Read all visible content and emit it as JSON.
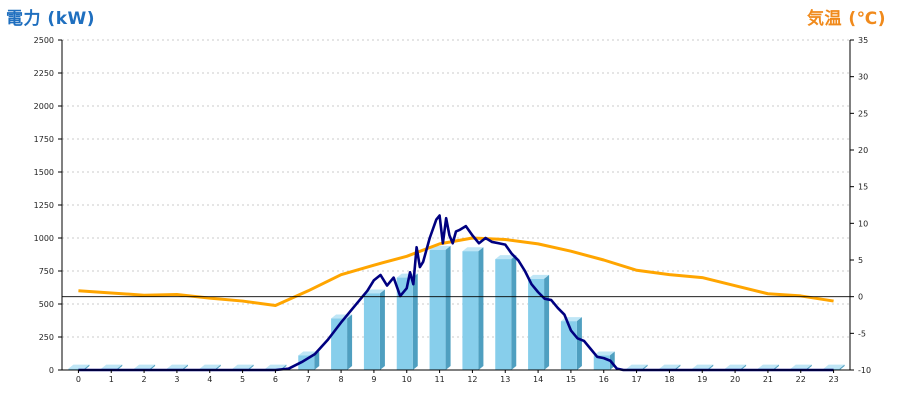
{
  "titles": {
    "left": "電力 (kW)",
    "right": "気温 (℃)"
  },
  "colors": {
    "left_title": "#1f6fbf",
    "right_title": "#f08a1c",
    "bar_front": "#87ceeb",
    "bar_side": "#4f9fc0",
    "bar_top": "#bfe6f6",
    "power_line": "#000080",
    "temp_line": "#ffa500",
    "grid": "#bbbbbb",
    "axis": "#000000"
  },
  "chart_data": {
    "type": "bar",
    "categories": [
      "0",
      "1",
      "2",
      "3",
      "4",
      "5",
      "6",
      "7",
      "8",
      "9",
      "10",
      "11",
      "12",
      "13",
      "14",
      "15",
      "16",
      "17",
      "18",
      "19",
      "20",
      "21",
      "22",
      "23"
    ],
    "xlabel": "",
    "ylabel": "電力 (kW)",
    "y2label": "気温 (℃)",
    "ylim": [
      0,
      2500
    ],
    "y2lim": [
      -10,
      35
    ],
    "yticks": [
      "0",
      "250",
      "500",
      "750",
      "1000",
      "1250",
      "1500",
      "1750",
      "2000",
      "2250",
      "2500"
    ],
    "y2ticks": [
      "-10",
      "-5",
      "0",
      "5",
      "10",
      "15",
      "20",
      "25",
      "30",
      "35"
    ],
    "grid": true,
    "series": [
      {
        "kind": "bar",
        "axis": "left",
        "values": [
          10,
          10,
          10,
          10,
          10,
          10,
          10,
          110,
          390,
          580,
          700,
          910,
          900,
          840,
          690,
          370,
          110,
          10,
          10,
          10,
          10,
          10,
          10,
          10
        ]
      },
      {
        "kind": "line",
        "axis": "left",
        "x": [
          0,
          1,
          2,
          3,
          4,
          5,
          6,
          6.4,
          6.8,
          7.2,
          7.6,
          8,
          8.3,
          8.6,
          8.8,
          9,
          9.2,
          9.4,
          9.6,
          9.8,
          10,
          10.1,
          10.2,
          10.3,
          10.4,
          10.5,
          10.7,
          10.9,
          11,
          11.1,
          11.2,
          11.3,
          11.4,
          11.5,
          11.6,
          11.8,
          12,
          12.2,
          12.4,
          12.6,
          12.8,
          13,
          13.2,
          13.4,
          13.6,
          13.8,
          14,
          14.2,
          14.4,
          14.6,
          14.8,
          15,
          15.2,
          15.4,
          15.6,
          15.8,
          16,
          16.2,
          16.4,
          16.6,
          17,
          18,
          19,
          20,
          21,
          22,
          23
        ],
        "values": [
          0,
          0,
          0,
          0,
          0,
          0,
          0,
          10,
          60,
          120,
          230,
          360,
          450,
          540,
          600,
          680,
          720,
          640,
          700,
          560,
          620,
          740,
          650,
          930,
          780,
          820,
          1000,
          1140,
          1170,
          960,
          1150,
          1020,
          960,
          1050,
          1060,
          1090,
          1020,
          960,
          1000,
          970,
          960,
          950,
          880,
          830,
          750,
          650,
          590,
          540,
          530,
          470,
          420,
          300,
          240,
          220,
          160,
          100,
          90,
          70,
          10,
          0,
          0,
          0,
          0,
          0,
          0,
          0,
          0
        ]
      },
      {
        "kind": "line",
        "axis": "right",
        "values": [
          0.8,
          0.5,
          0.2,
          0.3,
          -0.2,
          -0.6,
          -1.2,
          0.8,
          3.0,
          4.3,
          5.5,
          7.2,
          8.0,
          7.8,
          7.2,
          6.2,
          5.0,
          3.6,
          3.0,
          2.6,
          1.5,
          0.4,
          0.1,
          -0.6
        ]
      }
    ]
  }
}
